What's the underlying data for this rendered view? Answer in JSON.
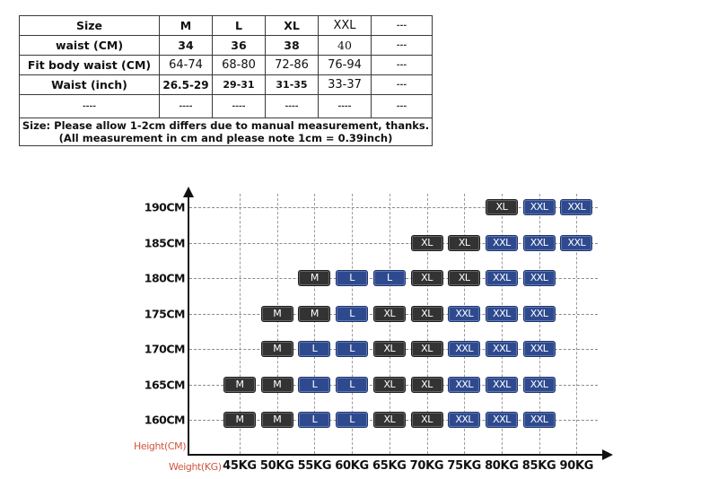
{
  "size_table": {
    "header": [
      "Size",
      "M",
      "L",
      "XL",
      "XXL",
      "---"
    ],
    "rows": [
      {
        "label": "waist (CM)",
        "cells": [
          "34",
          "36",
          "38",
          "40",
          "---"
        ]
      },
      {
        "label": "Fit body waist (CM)",
        "cells": [
          "64-74",
          "68-80",
          "72-86",
          "76-94",
          "---"
        ]
      },
      {
        "label": "Waist  (inch)",
        "cells": [
          "26.5-29",
          "29-31",
          "31-35",
          "33-37",
          "---"
        ]
      },
      {
        "label": "----",
        "cells": [
          "----",
          "----",
          "----",
          "----",
          "---"
        ]
      }
    ],
    "note_line1": "Size: Please allow 1-2cm differs due to manual measurement, thanks.",
    "note_line2": "(All measurement in cm and please note 1cm = 0.39inch)"
  },
  "chart_data": {
    "type": "heatmap",
    "title": "",
    "xlabel": "Weight(KG)",
    "ylabel": "Height(CM)",
    "x": [
      "45KG",
      "50KG",
      "55KG",
      "60KG",
      "65KG",
      "70KG",
      "75KG",
      "80KG",
      "85KG",
      "90KG"
    ],
    "y": [
      "190CM",
      "185CM",
      "180CM",
      "175CM",
      "170CM",
      "165CM",
      "160CM"
    ],
    "legend_colors": {
      "M": "#333333",
      "L": "#2e4a8f",
      "XL": "#333333",
      "XXL": "#2e4a8f"
    },
    "cells": [
      {
        "height": "190CM",
        "sizes": [
          null,
          null,
          null,
          null,
          null,
          null,
          null,
          "XL",
          "XXL",
          "XXL"
        ]
      },
      {
        "height": "185CM",
        "sizes": [
          null,
          null,
          null,
          null,
          null,
          "XL",
          "XL",
          "XXL",
          "XXL",
          "XXL"
        ]
      },
      {
        "height": "180CM",
        "sizes": [
          null,
          null,
          "M",
          "L",
          "L",
          "XL",
          "XL",
          "XXL",
          "XXL",
          null
        ]
      },
      {
        "height": "175CM",
        "sizes": [
          null,
          "M",
          "M",
          "L",
          "XL",
          "XL",
          "XXL",
          "XXL",
          "XXL",
          null
        ]
      },
      {
        "height": "170CM",
        "sizes": [
          null,
          "M",
          "L",
          "L",
          "XL",
          "XL",
          "XXL",
          "XXL",
          "XXL",
          null
        ]
      },
      {
        "height": "165CM",
        "sizes": [
          "M",
          "M",
          "L",
          "L",
          "XL",
          "XL",
          "XXL",
          "XXL",
          "XXL",
          null
        ]
      },
      {
        "height": "160CM",
        "sizes": [
          "M",
          "M",
          "L",
          "L",
          "XL",
          "XL",
          "XXL",
          "XXL",
          "XXL",
          null
        ]
      }
    ]
  }
}
